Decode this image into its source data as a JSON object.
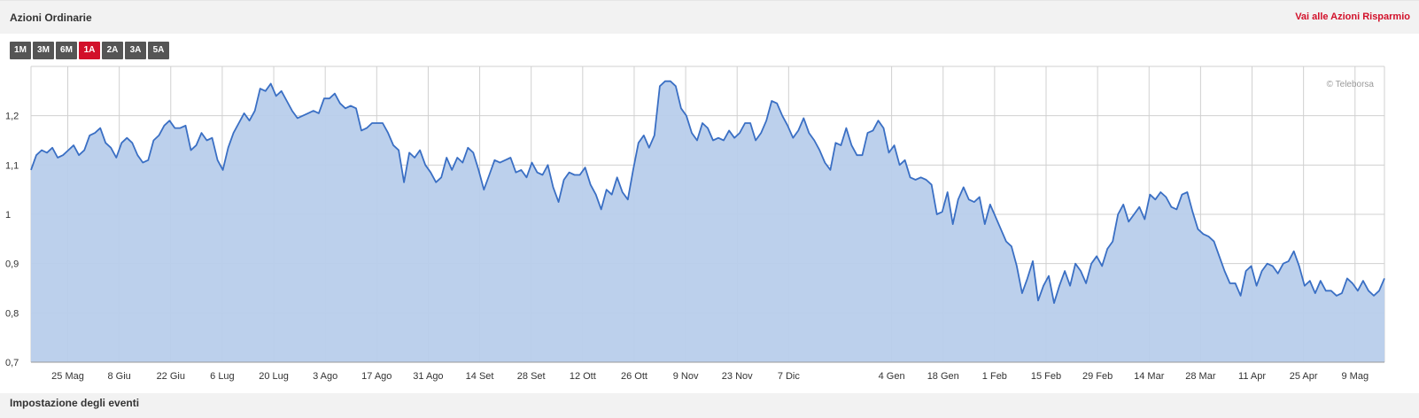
{
  "header": {
    "title": "Azioni Ordinarie",
    "link": "Vai alle Azioni Risparmio"
  },
  "ranges": [
    {
      "label": "1M",
      "active": false
    },
    {
      "label": "3M",
      "active": false
    },
    {
      "label": "6M",
      "active": false
    },
    {
      "label": "1A",
      "active": true
    },
    {
      "label": "2A",
      "active": false
    },
    {
      "label": "3A",
      "active": false
    },
    {
      "label": "5A",
      "active": false
    }
  ],
  "footer": {
    "title": "Impostazione degli eventi"
  },
  "colors": {
    "line": "#3a6fc4",
    "fill": "#b8cdeb",
    "accent": "#d2102a",
    "grid": "#d0d0d0"
  },
  "chart_data": {
    "type": "area",
    "credit": "© Teleborsa",
    "xlabel": "",
    "ylabel": "",
    "ylim": [
      0.7,
      1.3
    ],
    "yticks": [
      0.7,
      0.8,
      0.9,
      1.0,
      1.1,
      1.2
    ],
    "ytick_labels": [
      "0,7",
      "0,8",
      "0,9",
      "1",
      "1,1",
      "1,2"
    ],
    "grid": true,
    "date_start": "2023-05-15",
    "xtick_labels": [
      "25 Mag",
      "8 Giu",
      "22 Giu",
      "6 Lug",
      "20 Lug",
      "3 Ago",
      "17 Ago",
      "31 Ago",
      "14 Set",
      "28 Set",
      "12 Ott",
      "26 Ott",
      "9 Nov",
      "23 Nov",
      "7 Dic",
      "4 Gen",
      "18 Gen",
      "1 Feb",
      "15 Feb",
      "29 Feb",
      "14 Mar",
      "28 Mar",
      "11 Apr",
      "25 Apr",
      "9 Mag"
    ],
    "xtick_days": [
      10,
      24,
      38,
      52,
      66,
      80,
      94,
      108,
      122,
      136,
      150,
      164,
      178,
      192,
      206,
      234,
      248,
      262,
      276,
      290,
      304,
      318,
      332,
      346,
      360
    ],
    "x_end_day": 368,
    "series": [
      {
        "name": "",
        "points": [
          [
            0,
            1.09
          ],
          [
            2,
            1.12
          ],
          [
            4,
            1.13
          ],
          [
            6,
            1.125
          ],
          [
            8,
            1.135
          ],
          [
            10,
            1.115
          ],
          [
            12,
            1.12
          ],
          [
            14,
            1.13
          ],
          [
            16,
            1.14
          ],
          [
            18,
            1.12
          ],
          [
            20,
            1.13
          ],
          [
            22,
            1.16
          ],
          [
            24,
            1.165
          ],
          [
            26,
            1.175
          ],
          [
            28,
            1.145
          ],
          [
            30,
            1.135
          ],
          [
            32,
            1.115
          ],
          [
            34,
            1.145
          ],
          [
            36,
            1.155
          ],
          [
            38,
            1.145
          ],
          [
            40,
            1.12
          ],
          [
            42,
            1.105
          ],
          [
            44,
            1.11
          ],
          [
            46,
            1.15
          ],
          [
            48,
            1.16
          ],
          [
            50,
            1.18
          ],
          [
            52,
            1.19
          ],
          [
            54,
            1.175
          ],
          [
            56,
            1.175
          ],
          [
            58,
            1.18
          ],
          [
            60,
            1.13
          ],
          [
            62,
            1.14
          ],
          [
            64,
            1.165
          ],
          [
            66,
            1.15
          ],
          [
            68,
            1.155
          ],
          [
            70,
            1.11
          ],
          [
            72,
            1.09
          ],
          [
            74,
            1.135
          ],
          [
            76,
            1.165
          ],
          [
            78,
            1.185
          ],
          [
            80,
            1.205
          ],
          [
            82,
            1.19
          ],
          [
            84,
            1.21
          ],
          [
            86,
            1.255
          ],
          [
            88,
            1.25
          ],
          [
            90,
            1.265
          ],
          [
            92,
            1.24
          ],
          [
            94,
            1.25
          ],
          [
            96,
            1.23
          ],
          [
            98,
            1.21
          ],
          [
            100,
            1.195
          ],
          [
            102,
            1.2
          ],
          [
            104,
            1.205
          ],
          [
            106,
            1.21
          ],
          [
            108,
            1.205
          ],
          [
            110,
            1.235
          ],
          [
            112,
            1.235
          ],
          [
            114,
            1.245
          ],
          [
            116,
            1.225
          ],
          [
            118,
            1.215
          ],
          [
            120,
            1.22
          ],
          [
            122,
            1.215
          ],
          [
            124,
            1.17
          ],
          [
            126,
            1.175
          ],
          [
            128,
            1.185
          ],
          [
            130,
            1.185
          ],
          [
            132,
            1.185
          ],
          [
            134,
            1.165
          ],
          [
            136,
            1.14
          ],
          [
            138,
            1.13
          ],
          [
            140,
            1.065
          ],
          [
            142,
            1.125
          ],
          [
            144,
            1.115
          ],
          [
            146,
            1.13
          ],
          [
            148,
            1.1
          ],
          [
            150,
            1.085
          ],
          [
            152,
            1.065
          ],
          [
            154,
            1.075
          ],
          [
            156,
            1.115
          ],
          [
            158,
            1.09
          ],
          [
            160,
            1.115
          ],
          [
            162,
            1.105
          ],
          [
            164,
            1.135
          ],
          [
            166,
            1.125
          ],
          [
            168,
            1.09
          ],
          [
            170,
            1.05
          ],
          [
            172,
            1.08
          ],
          [
            174,
            1.11
          ],
          [
            176,
            1.105
          ],
          [
            178,
            1.11
          ],
          [
            180,
            1.115
          ],
          [
            182,
            1.085
          ],
          [
            184,
            1.09
          ],
          [
            186,
            1.075
          ],
          [
            188,
            1.105
          ],
          [
            190,
            1.085
          ],
          [
            192,
            1.08
          ],
          [
            194,
            1.1
          ],
          [
            196,
            1.055
          ],
          [
            198,
            1.025
          ],
          [
            200,
            1.07
          ],
          [
            202,
            1.085
          ],
          [
            204,
            1.08
          ],
          [
            206,
            1.08
          ],
          [
            208,
            1.095
          ],
          [
            210,
            1.06
          ],
          [
            212,
            1.04
          ],
          [
            214,
            1.01
          ],
          [
            216,
            1.05
          ],
          [
            218,
            1.04
          ],
          [
            220,
            1.075
          ],
          [
            222,
            1.045
          ],
          [
            224,
            1.03
          ],
          [
            226,
            1.09
          ],
          [
            228,
            1.145
          ],
          [
            230,
            1.16
          ],
          [
            232,
            1.135
          ],
          [
            234,
            1.16
          ],
          [
            236,
            1.26
          ],
          [
            238,
            1.27
          ],
          [
            240,
            1.27
          ],
          [
            242,
            1.26
          ],
          [
            244,
            1.215
          ],
          [
            246,
            1.2
          ],
          [
            248,
            1.165
          ],
          [
            250,
            1.15
          ],
          [
            252,
            1.185
          ],
          [
            254,
            1.175
          ],
          [
            256,
            1.15
          ],
          [
            258,
            1.155
          ],
          [
            260,
            1.15
          ],
          [
            262,
            1.17
          ],
          [
            264,
            1.155
          ],
          [
            266,
            1.165
          ],
          [
            268,
            1.185
          ],
          [
            270,
            1.185
          ],
          [
            272,
            1.15
          ],
          [
            274,
            1.165
          ],
          [
            276,
            1.19
          ],
          [
            278,
            1.23
          ],
          [
            280,
            1.225
          ],
          [
            282,
            1.2
          ],
          [
            284,
            1.18
          ],
          [
            286,
            1.155
          ],
          [
            288,
            1.17
          ],
          [
            290,
            1.195
          ],
          [
            292,
            1.165
          ],
          [
            294,
            1.15
          ],
          [
            296,
            1.13
          ],
          [
            298,
            1.105
          ],
          [
            300,
            1.09
          ],
          [
            302,
            1.145
          ],
          [
            304,
            1.14
          ],
          [
            306,
            1.175
          ],
          [
            308,
            1.14
          ],
          [
            310,
            1.12
          ],
          [
            312,
            1.12
          ],
          [
            314,
            1.165
          ],
          [
            316,
            1.17
          ],
          [
            318,
            1.19
          ],
          [
            320,
            1.175
          ],
          [
            322,
            1.125
          ],
          [
            324,
            1.14
          ],
          [
            326,
            1.1
          ],
          [
            328,
            1.11
          ],
          [
            330,
            1.075
          ],
          [
            332,
            1.07
          ],
          [
            334,
            1.075
          ],
          [
            336,
            1.07
          ],
          [
            338,
            1.06
          ],
          [
            340,
            1.0
          ],
          [
            342,
            1.005
          ],
          [
            344,
            1.045
          ],
          [
            346,
            0.98
          ],
          [
            348,
            1.03
          ],
          [
            350,
            1.055
          ],
          [
            352,
            1.03
          ],
          [
            354,
            1.025
          ],
          [
            356,
            1.035
          ],
          [
            358,
            0.98
          ],
          [
            360,
            1.02
          ],
          [
            362,
            0.995
          ],
          [
            364,
            0.97
          ],
          [
            366,
            0.945
          ],
          [
            368,
            0.935
          ],
          [
            370,
            0.895
          ],
          [
            372,
            0.84
          ],
          [
            374,
            0.87
          ],
          [
            376,
            0.905
          ],
          [
            378,
            0.825
          ],
          [
            380,
            0.855
          ],
          [
            382,
            0.875
          ],
          [
            384,
            0.82
          ],
          [
            386,
            0.855
          ],
          [
            388,
            0.885
          ],
          [
            390,
            0.855
          ],
          [
            392,
            0.9
          ],
          [
            394,
            0.885
          ],
          [
            396,
            0.86
          ],
          [
            398,
            0.9
          ],
          [
            400,
            0.915
          ],
          [
            402,
            0.895
          ],
          [
            404,
            0.93
          ],
          [
            406,
            0.945
          ],
          [
            408,
            1.0
          ],
          [
            410,
            1.02
          ],
          [
            412,
            0.985
          ],
          [
            414,
            1.0
          ],
          [
            416,
            1.015
          ],
          [
            418,
            0.99
          ],
          [
            420,
            1.04
          ],
          [
            422,
            1.03
          ],
          [
            424,
            1.045
          ],
          [
            426,
            1.035
          ],
          [
            428,
            1.015
          ],
          [
            430,
            1.01
          ],
          [
            432,
            1.04
          ],
          [
            434,
            1.045
          ],
          [
            436,
            1.005
          ],
          [
            438,
            0.97
          ],
          [
            440,
            0.96
          ],
          [
            442,
            0.955
          ],
          [
            444,
            0.945
          ],
          [
            446,
            0.915
          ],
          [
            448,
            0.885
          ],
          [
            450,
            0.86
          ],
          [
            452,
            0.86
          ],
          [
            454,
            0.835
          ],
          [
            456,
            0.885
          ],
          [
            458,
            0.895
          ],
          [
            460,
            0.855
          ],
          [
            462,
            0.885
          ],
          [
            464,
            0.9
          ],
          [
            466,
            0.895
          ],
          [
            468,
            0.88
          ],
          [
            470,
            0.9
          ],
          [
            472,
            0.905
          ],
          [
            474,
            0.925
          ],
          [
            476,
            0.895
          ],
          [
            478,
            0.855
          ],
          [
            480,
            0.865
          ],
          [
            482,
            0.84
          ],
          [
            484,
            0.865
          ],
          [
            486,
            0.845
          ],
          [
            488,
            0.845
          ],
          [
            490,
            0.835
          ],
          [
            492,
            0.84
          ],
          [
            494,
            0.87
          ],
          [
            496,
            0.86
          ],
          [
            498,
            0.845
          ],
          [
            500,
            0.865
          ],
          [
            502,
            0.845
          ],
          [
            504,
            0.835
          ],
          [
            506,
            0.845
          ],
          [
            508,
            0.87
          ]
        ]
      }
    ]
  }
}
